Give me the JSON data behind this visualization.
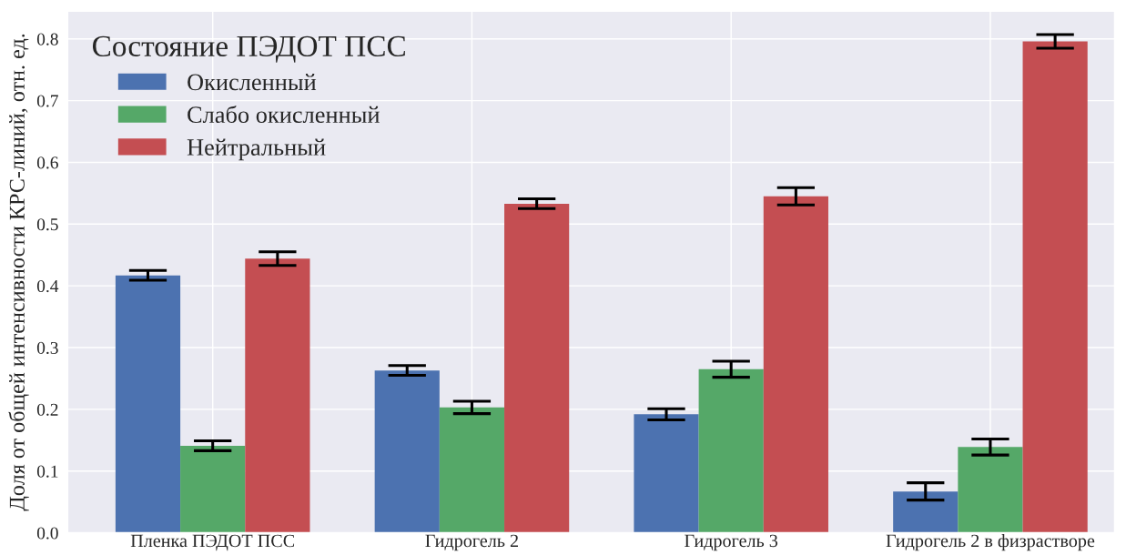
{
  "chart_data": {
    "type": "bar",
    "ylabel": "Доля от общей интенсивности КРС-линий, отн. ед.",
    "legend_title": "Состояние ПЭДОТ ПСС",
    "categories": [
      "Пленка ПЭДОТ ПСС",
      "Гидрогель 2",
      "Гидрогель 3",
      "Гидрогель 2 в физрастворе"
    ],
    "series": [
      {
        "name": "Окисленный",
        "color": "#4c72b0",
        "values": [
          0.417,
          0.263,
          0.192,
          0.067
        ],
        "errors": [
          0.008,
          0.008,
          0.009,
          0.014
        ]
      },
      {
        "name": "Слабо окисленный",
        "color": "#55a868",
        "values": [
          0.141,
          0.203,
          0.265,
          0.139
        ],
        "errors": [
          0.008,
          0.01,
          0.013,
          0.013
        ]
      },
      {
        "name": "Нейтральный",
        "color": "#c44e52",
        "values": [
          0.444,
          0.533,
          0.545,
          0.796
        ],
        "errors": [
          0.011,
          0.008,
          0.014,
          0.011
        ]
      }
    ],
    "ylim": [
      0,
      0.845
    ],
    "yticks": [
      {
        "value": 0,
        "label": "0.0"
      },
      0.1,
      0.2,
      0.3,
      0.4,
      0.5,
      0.6,
      0.7,
      0.8
    ],
    "grid": true,
    "legend": "top left"
  }
}
